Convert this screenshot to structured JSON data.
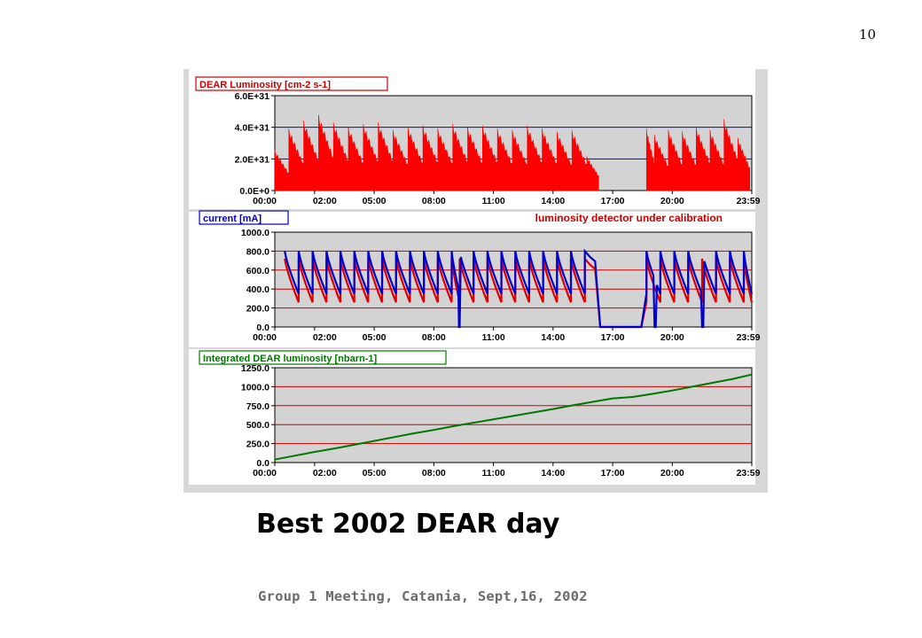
{
  "page_number": "10",
  "title": "Best 2002 DEAR day",
  "footer": "Group 1 Meeting, Catania, Sept,16, 2002",
  "colors": {
    "luminosity": "#ff0000",
    "current_e_minus": "#0000cc",
    "current_e_plus": "#dd0000",
    "integrated": "#007700",
    "plot_bg": "#d3d3d3",
    "figure_bg": "#d8d8d8"
  },
  "chart_data": [
    {
      "type": "bar",
      "title": "DEAR Luminosity [cm-2 s-1]",
      "title_color": "#cc0000",
      "annotation": "",
      "x_ticks": [
        "00:00",
        "02:00",
        "05:00",
        "08:00",
        "11:00",
        "14:00",
        "17:00",
        "20:00",
        "23:59"
      ],
      "y_ticks": [
        "0.0E+0",
        "2.0E+31",
        "4.0E+31",
        "6.0E+31"
      ],
      "ylim": [
        0,
        6e+31
      ],
      "xlim_hours": [
        0,
        24
      ],
      "gridlines": [
        2e+31,
        4e+31
      ],
      "grid_color": "#0000ff",
      "series": [
        {
          "color": "#ff0000",
          "fills": [
            {
              "start": 0.0,
              "end": 0.7,
              "peak": 2.6e+31
            },
            {
              "start": 0.7,
              "end": 1.45,
              "peak": 4e+31
            },
            {
              "start": 1.45,
              "end": 2.2,
              "peak": 4.5e+31
            },
            {
              "start": 2.2,
              "end": 2.95,
              "peak": 4.9e+31
            },
            {
              "start": 2.95,
              "end": 3.7,
              "peak": 4.4e+31
            },
            {
              "start": 3.7,
              "end": 4.45,
              "peak": 4.1e+31
            },
            {
              "start": 4.45,
              "end": 5.2,
              "peak": 4.3e+31
            },
            {
              "start": 5.2,
              "end": 5.95,
              "peak": 4.4e+31
            },
            {
              "start": 5.95,
              "end": 6.7,
              "peak": 3.9e+31
            },
            {
              "start": 6.7,
              "end": 7.45,
              "peak": 4.1e+31
            },
            {
              "start": 7.45,
              "end": 8.2,
              "peak": 4.2e+31
            },
            {
              "start": 8.2,
              "end": 8.95,
              "peak": 4e+31
            },
            {
              "start": 8.95,
              "end": 9.7,
              "peak": 4.3e+31
            },
            {
              "start": 9.7,
              "end": 10.45,
              "peak": 4.1e+31
            },
            {
              "start": 10.45,
              "end": 11.2,
              "peak": 4.2e+31
            },
            {
              "start": 11.2,
              "end": 11.95,
              "peak": 4e+31
            },
            {
              "start": 11.95,
              "end": 12.7,
              "peak": 3.9e+31
            },
            {
              "start": 12.7,
              "end": 13.45,
              "peak": 4.2e+31
            },
            {
              "start": 13.45,
              "end": 14.2,
              "peak": 4e+31
            },
            {
              "start": 14.2,
              "end": 14.95,
              "peak": 3.8e+31
            },
            {
              "start": 14.95,
              "end": 15.7,
              "peak": 3.9e+31
            },
            {
              "start": 15.7,
              "end": 16.3,
              "peak": 2.2e+31
            },
            {
              "start": 18.7,
              "end": 19.1,
              "peak": 4e+31
            },
            {
              "start": 19.1,
              "end": 19.8,
              "peak": 3.6e+31
            },
            {
              "start": 19.8,
              "end": 20.5,
              "peak": 3.9e+31
            },
            {
              "start": 20.5,
              "end": 21.2,
              "peak": 3.8e+31
            },
            {
              "start": 21.2,
              "end": 21.9,
              "peak": 4.1e+31
            },
            {
              "start": 21.9,
              "end": 22.6,
              "peak": 3.9e+31
            },
            {
              "start": 22.6,
              "end": 23.3,
              "peak": 4.6e+31
            },
            {
              "start": 23.3,
              "end": 23.9,
              "peak": 3.4e+31
            }
          ]
        }
      ]
    },
    {
      "type": "line",
      "title": "current [mA]",
      "title_color": "#0000cc",
      "annotation": "luminosity detector under calibration",
      "annotation_color": "#cc0000",
      "x_ticks": [
        "00:00",
        "02:00",
        "05:00",
        "08:00",
        "11:00",
        "14:00",
        "17:00",
        "20:00",
        "23:59"
      ],
      "y_ticks": [
        "0.0",
        "200.0",
        "400.0",
        "600.0",
        "800.0",
        "1000.0"
      ],
      "ylim": [
        0,
        1000
      ],
      "xlim_hours": [
        0,
        24
      ],
      "gridlines": [
        200,
        400,
        600,
        800
      ],
      "grid_color": "#cc0000",
      "series": [
        {
          "color": "#0000cc",
          "peak": 800,
          "trough": 350,
          "injection_times_hours": [
            0.5,
            1.2,
            1.9,
            2.6,
            3.3,
            4.0,
            4.7,
            5.4,
            6.1,
            6.8,
            7.5,
            8.2,
            8.9,
            9.3,
            10.0,
            10.7,
            11.4,
            12.1,
            12.8,
            13.5,
            14.2,
            14.9,
            15.6,
            18.7,
            19.4,
            20.1,
            20.8,
            21.5,
            22.2,
            22.9,
            23.6
          ],
          "gaps_hours": [
            [
              9.25,
              9.3
            ],
            [
              16.3,
              18.6
            ],
            [
              19.1,
              19.2
            ],
            [
              21.5,
              21.6
            ]
          ]
        },
        {
          "color": "#dd0000",
          "peak": 720,
          "trough": 260,
          "injection_times_hours": [
            0.5,
            1.2,
            1.9,
            2.6,
            3.3,
            4.0,
            4.7,
            5.4,
            6.1,
            6.8,
            7.5,
            8.2,
            8.9,
            9.3,
            10.0,
            10.7,
            11.4,
            12.1,
            12.8,
            13.5,
            14.2,
            14.9,
            15.6,
            18.7,
            19.4,
            20.1,
            20.8,
            21.5,
            22.2,
            22.9,
            23.6
          ],
          "gaps_hours": [
            [
              16.3,
              18.6
            ]
          ]
        }
      ]
    },
    {
      "type": "line",
      "title": "Integrated DEAR luminosity  [nbarn-1]",
      "title_color": "#007700",
      "annotation": "",
      "x_ticks": [
        "00:00",
        "02:00",
        "05:00",
        "08:00",
        "11:00",
        "14:00",
        "17:00",
        "20:00",
        "23:59"
      ],
      "y_ticks": [
        "0.0",
        "250.0",
        "500.0",
        "750.0",
        "1000.0",
        "1250.0"
      ],
      "ylim": [
        0,
        1250
      ],
      "xlim_hours": [
        0,
        24
      ],
      "gridlines": [
        250,
        500,
        750,
        1000
      ],
      "grid_color": "#cc0000",
      "series": [
        {
          "color": "#007700",
          "x": [
            0,
            1,
            2,
            3,
            4,
            5,
            6,
            7,
            8,
            9,
            10,
            11,
            12,
            13,
            14,
            15,
            16,
            17,
            18,
            19,
            20,
            21,
            22,
            23,
            24
          ],
          "y": [
            40,
            90,
            140,
            185,
            235,
            285,
            335,
            385,
            430,
            480,
            525,
            570,
            615,
            660,
            705,
            755,
            800,
            845,
            865,
            905,
            950,
            1000,
            1050,
            1100,
            1160
          ]
        }
      ]
    }
  ]
}
